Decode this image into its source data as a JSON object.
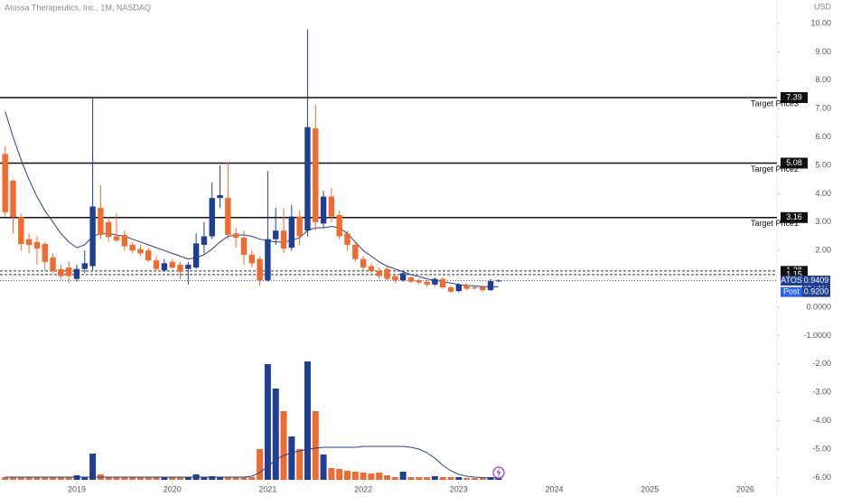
{
  "chart_data": {
    "type": "candlestick",
    "title": "Atossa Therapeutics, Inc., 1M, NASDAQ",
    "currency": "USD",
    "up_color": "#1f3f94",
    "down_color": "#f26a2e",
    "ma_color": "#2b3f8c",
    "x": [
      2018.25,
      2018.3333,
      2018.4167,
      2018.5,
      2018.5833,
      2018.6667,
      2018.75,
      2018.8333,
      2018.9167,
      2019,
      2019.0833,
      2019.1667,
      2019.25,
      2019.3333,
      2019.4167,
      2019.5,
      2019.5833,
      2019.6667,
      2019.75,
      2019.8333,
      2019.9167,
      2020,
      2020.0833,
      2020.1667,
      2020.25,
      2020.3333,
      2020.4167,
      2020.5,
      2020.5833,
      2020.6667,
      2020.75,
      2020.8333,
      2020.9167,
      2021,
      2021.0833,
      2021.1667,
      2021.25,
      2021.3333,
      2021.4167,
      2021.5,
      2021.5833,
      2021.6667,
      2021.75,
      2021.8333,
      2021.9167,
      2022,
      2022.0833,
      2022.1667,
      2022.25,
      2022.3333,
      2022.4167,
      2022.5,
      2022.5833,
      2022.6667,
      2022.75,
      2022.8333,
      2022.9167,
      2023,
      2023.0833,
      2023.1667,
      2023.25,
      2023.3333,
      2023.4167
    ],
    "open": [
      5.4,
      4.46,
      3.18,
      2.4,
      2.3,
      2.23,
      1.75,
      1.34,
      1.4,
      1.0,
      1.35,
      1.45,
      3.5,
      3.0,
      2.5,
      2.55,
      2.2,
      2.05,
      2.0,
      1.65,
      1.3,
      1.6,
      1.5,
      1.35,
      1.4,
      2.2,
      2.5,
      3.85,
      3.85,
      2.6,
      2.45,
      1.85,
      1.7,
      0.95,
      2.4,
      2.7,
      2.1,
      3.2,
      2.7,
      6.3,
      2.95,
      3.9,
      3.25,
      2.6,
      2.2,
      1.7,
      1.45,
      1.28,
      1.35,
      1.1,
      0.95,
      1.05,
      0.95,
      0.9,
      0.8,
      1.0,
      0.7,
      0.57,
      0.78,
      0.7,
      0.72,
      0.6,
      0.92
    ],
    "high": [
      5.67,
      4.5,
      3.3,
      2.6,
      2.5,
      2.3,
      1.9,
      1.5,
      1.6,
      1.5,
      2.0,
      7.4,
      4.3,
      3.2,
      3.3,
      2.7,
      2.3,
      2.2,
      2.1,
      1.8,
      1.7,
      1.7,
      1.6,
      1.6,
      2.6,
      3.0,
      4.4,
      5.0,
      5.1,
      2.8,
      2.7,
      2.0,
      1.8,
      4.8,
      3.5,
      3.5,
      3.6,
      3.4,
      9.8,
      7.15,
      4.1,
      4.2,
      3.4,
      2.7,
      2.3,
      1.8,
      1.55,
      1.4,
      1.45,
      1.15,
      1.25,
      1.1,
      1.0,
      0.95,
      1.05,
      1.05,
      0.75,
      0.85,
      0.85,
      0.78,
      0.78,
      1.0,
      0.98
    ],
    "low": [
      3.2,
      2.6,
      2.0,
      1.9,
      1.5,
      1.3,
      1.2,
      1.0,
      0.85,
      0.9,
      1.2,
      1.3,
      2.4,
      2.3,
      2.3,
      2.0,
      1.9,
      1.8,
      1.6,
      1.3,
      1.25,
      1.35,
      1.0,
      0.8,
      1.35,
      1.9,
      2.4,
      3.5,
      2.4,
      2.1,
      1.5,
      1.4,
      0.75,
      0.9,
      2.2,
      1.9,
      2.0,
      2.2,
      2.5,
      2.7,
      2.8,
      3.0,
      2.4,
      2.0,
      1.6,
      1.3,
      1.2,
      1.0,
      0.95,
      0.85,
      0.9,
      0.85,
      0.8,
      0.72,
      0.75,
      0.65,
      0.5,
      0.53,
      0.6,
      0.62,
      0.55,
      0.58,
      0.9
    ],
    "close": [
      3.35,
      3.18,
      2.23,
      2.2,
      2.07,
      1.6,
      1.27,
      1.1,
      1.1,
      1.35,
      1.55,
      3.55,
      2.55,
      2.48,
      2.35,
      2.15,
      2.0,
      1.9,
      1.65,
      1.35,
      1.55,
      1.4,
      1.25,
      1.5,
      2.25,
      2.5,
      3.85,
      3.95,
      2.55,
      2.45,
      1.85,
      1.55,
      0.95,
      2.4,
      2.7,
      2.07,
      3.2,
      2.5,
      6.35,
      3.0,
      3.9,
      3.2,
      2.5,
      2.2,
      1.7,
      1.4,
      1.28,
      1.1,
      1.0,
      0.95,
      1.2,
      0.9,
      0.87,
      0.8,
      1.0,
      0.7,
      0.55,
      0.8,
      0.65,
      0.67,
      0.6,
      0.92,
      0.94
    ],
    "ma": [
      6.9,
      6.0,
      5.2,
      4.5,
      3.9,
      3.4,
      3.0,
      2.6,
      2.3,
      2.1,
      2.2,
      2.5,
      2.6,
      2.6,
      2.55,
      2.5,
      2.4,
      2.3,
      2.2,
      2.1,
      2.0,
      1.9,
      1.8,
      1.7,
      1.75,
      1.85,
      2.05,
      2.3,
      2.5,
      2.55,
      2.55,
      2.5,
      2.4,
      2.35,
      2.3,
      2.3,
      2.35,
      2.45,
      2.7,
      2.8,
      2.8,
      2.85,
      2.8,
      2.6,
      2.3,
      2.0,
      1.8,
      1.6,
      1.45,
      1.35,
      1.25,
      1.15,
      1.08,
      1.0,
      0.95,
      0.9,
      0.85,
      0.8,
      0.77,
      0.75,
      0.73,
      0.72,
      0.72
    ],
    "volume": [
      3,
      3,
      3,
      3,
      3,
      3,
      3,
      3,
      3,
      5,
      3,
      29,
      6,
      3,
      3,
      3,
      3,
      3,
      3,
      3,
      3,
      3,
      3,
      3,
      6,
      3,
      4,
      3,
      3,
      3,
      3,
      3,
      34,
      128,
      101,
      76,
      48,
      34,
      131,
      76,
      28,
      13,
      12,
      10,
      9,
      8,
      7,
      8,
      5,
      3,
      9,
      3,
      3,
      3,
      4,
      3,
      3,
      3,
      2,
      2,
      2,
      3,
      2
    ],
    "volume_ma": [
      3,
      3,
      3,
      3,
      3,
      3,
      3,
      3,
      3,
      3,
      3,
      3,
      3,
      3,
      3,
      3,
      3,
      3,
      3,
      3,
      3,
      3,
      3,
      3,
      3,
      3,
      3,
      3,
      3,
      3,
      3,
      4,
      8,
      15,
      22,
      27,
      30,
      32,
      34,
      35,
      36,
      36,
      36,
      36,
      36,
      37,
      37,
      37,
      37,
      37,
      37,
      36,
      34,
      30,
      24,
      16,
      10,
      6,
      4,
      3,
      2.5,
      2,
      2
    ],
    "xlim": [
      2018.196,
      2026.332
    ],
    "xticks": [
      2019,
      2020,
      2021,
      2022,
      2023,
      2024,
      2025,
      2026
    ],
    "ylim": [
      -6.37,
      10.83
    ],
    "yticks": [
      {
        "value": 10,
        "label": "10.00"
      },
      {
        "value": 9,
        "label": "9.00"
      },
      {
        "value": 8,
        "label": "8.00"
      },
      {
        "value": 7,
        "label": "7.00"
      },
      {
        "value": 6,
        "label": "6.00"
      },
      {
        "value": 5,
        "label": "5.00"
      },
      {
        "value": 4,
        "label": "4.00"
      },
      {
        "value": 3,
        "label": "3.00"
      },
      {
        "value": 2,
        "label": "2.00"
      },
      {
        "value": 0,
        "label": "0.0000"
      },
      {
        "value": -1,
        "label": "-1.0000"
      },
      {
        "value": -2,
        "label": "-2.00"
      },
      {
        "value": -3,
        "label": "-3.00"
      },
      {
        "value": -4,
        "label": "-4.00"
      },
      {
        "value": -5,
        "label": "-5.00"
      },
      {
        "value": -6,
        "label": "-6.00"
      }
    ],
    "target_levels": [
      {
        "name": "Target Price3",
        "value": 7.39
      },
      {
        "name": "Target Price2",
        "value": 5.08
      },
      {
        "name": "Target Price1",
        "value": 3.16
      }
    ],
    "dashed_levels": [
      1.28,
      1.15
    ],
    "last_price": {
      "name": "ATOS",
      "value": 0.9409,
      "countdown": "27d 21h"
    },
    "post_price": {
      "name": "Post",
      "value": 0.92,
      "value_label": "0.9200"
    }
  }
}
